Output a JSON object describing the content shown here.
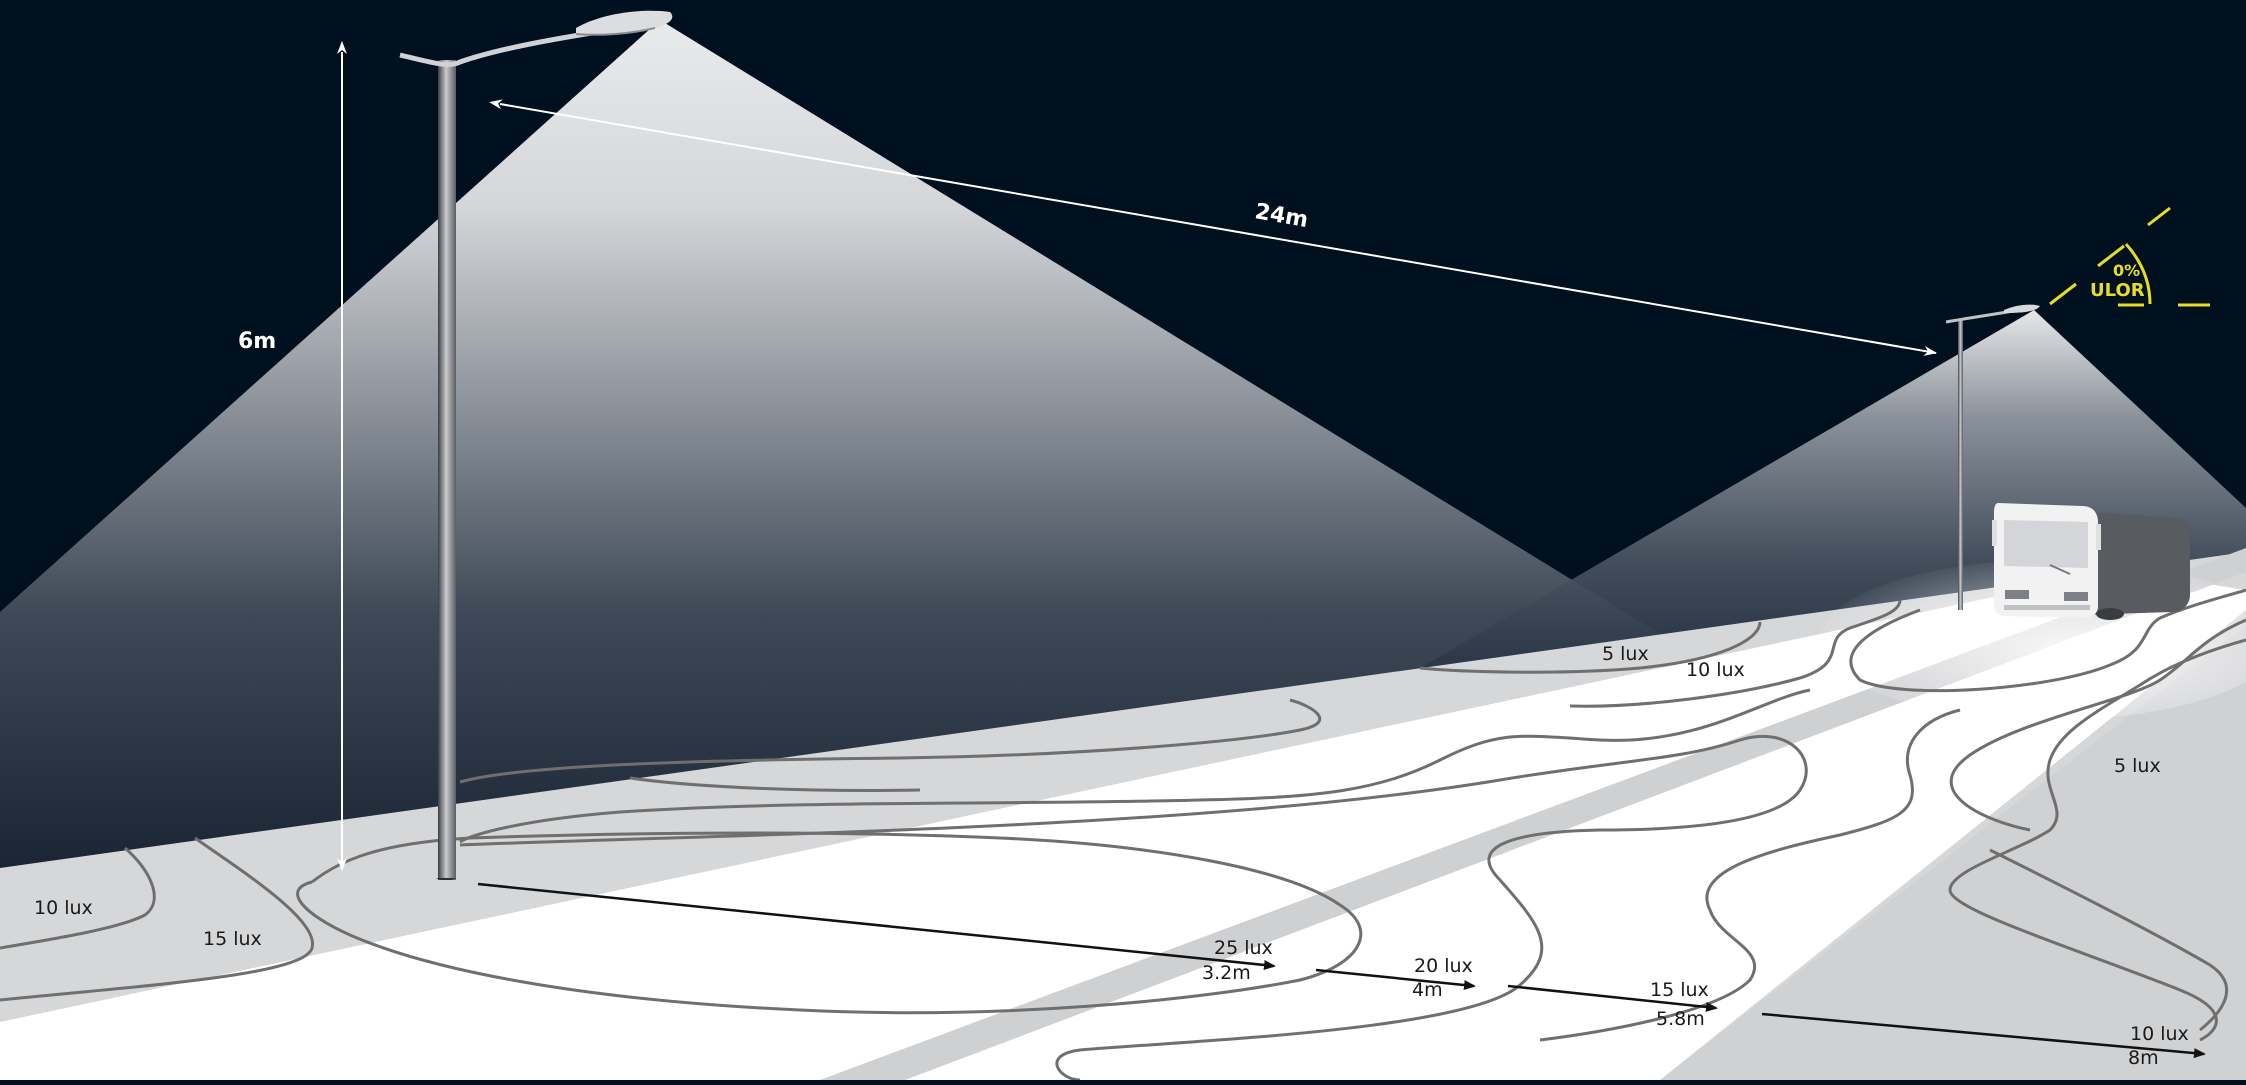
{
  "dimensions": {
    "pole_height": "6m",
    "pole_spacing": "24m"
  },
  "ulor": {
    "value": "0%",
    "label": "ULOR"
  },
  "isolux_labels": {
    "near_left_10": "10 lux",
    "near_left_15": "15 lux",
    "far_5": "5 lux",
    "far_10": "10 lux",
    "right_5": "5 lux"
  },
  "distance_markers": [
    {
      "lux": "25 lux",
      "distance": "3.2m"
    },
    {
      "lux": "20 lux",
      "distance": "4m"
    },
    {
      "lux": "15 lux",
      "distance": "5.8m"
    },
    {
      "lux": "10 lux",
      "distance": "8m"
    }
  ],
  "colors": {
    "sky": "#01101f",
    "road_light": "#ffffff",
    "road_grey": "#d6d7d9",
    "isolux_line": "#6f6f6f",
    "ulor_yellow": "#e8dc2a"
  }
}
